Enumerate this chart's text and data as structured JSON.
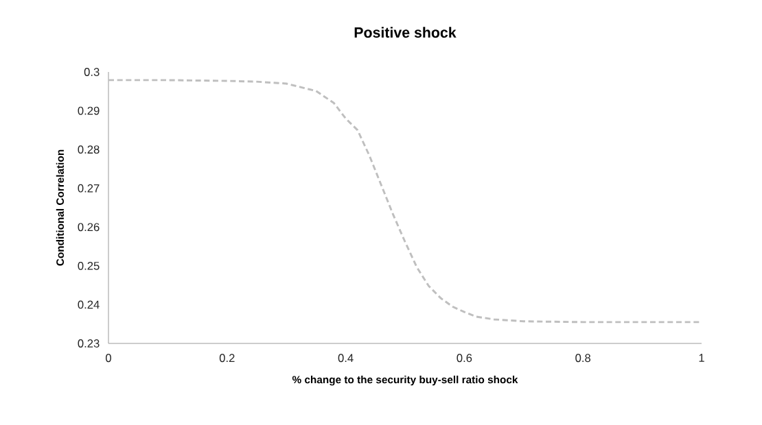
{
  "chart_data": {
    "type": "line",
    "title": "Positive shock",
    "xlabel": "% change to the  security buy-sell ratio shock",
    "ylabel": "Conditional Correlation",
    "x": [
      0,
      0.1,
      0.2,
      0.25,
      0.3,
      0.35,
      0.38,
      0.4,
      0.42,
      0.44,
      0.46,
      0.48,
      0.5,
      0.52,
      0.54,
      0.56,
      0.58,
      0.6,
      0.62,
      0.65,
      0.7,
      0.8,
      0.9,
      1
    ],
    "series": [
      {
        "color": "#bfbfbf",
        "values": [
          0.2979,
          0.2979,
          0.2977,
          0.2975,
          0.297,
          0.2951,
          0.292,
          0.288,
          0.285,
          0.2784,
          0.2708,
          0.2632,
          0.2562,
          0.2496,
          0.2448,
          0.2417,
          0.2395,
          0.2381,
          0.2369,
          0.2362,
          0.2357,
          0.2355,
          0.2355,
          0.2355
        ]
      }
    ],
    "xlim": [
      0,
      1
    ],
    "ylim": [
      0.23,
      0.3
    ],
    "xticks": [
      0,
      0.2,
      0.4,
      0.6,
      0.8,
      1
    ],
    "yticks": [
      0.23,
      0.24,
      0.25,
      0.26,
      0.27,
      0.28,
      0.29,
      0.3
    ],
    "grid": false,
    "legend": false,
    "marker": "none",
    "line_style": "dashed"
  }
}
